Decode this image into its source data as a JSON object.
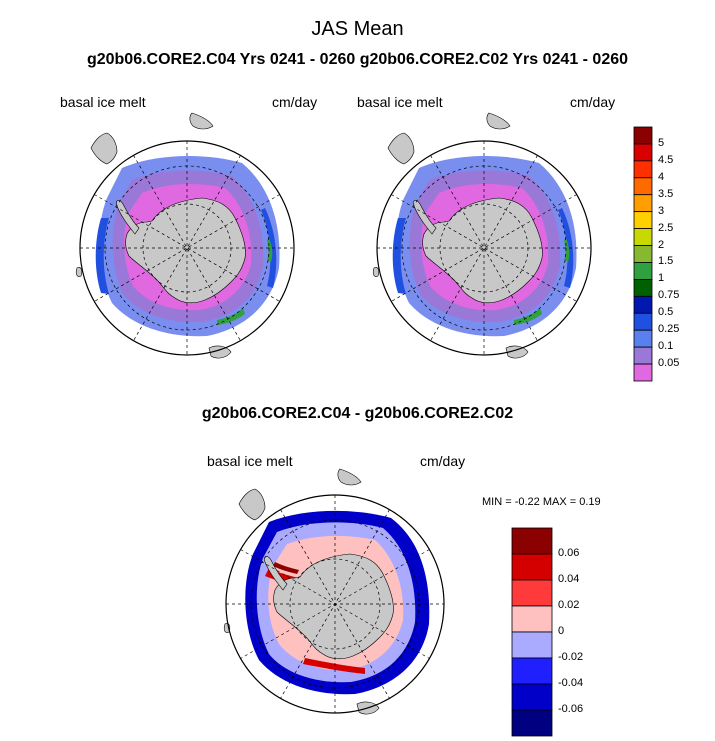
{
  "title": "JAS Mean",
  "subtitle": "g20b06.CORE2.C04  Yrs 0241 - 0260 g20b06.CORE2.C02  Yrs 0241 - 0260",
  "colors": {
    "land": "#c8c8c8",
    "ocean": "#ffffff",
    "grid_line": "#000000"
  },
  "chart_data": [
    {
      "type": "heatmap",
      "map_projection": "south-polar-stereographic",
      "left_label": "basal ice melt",
      "right_label": "cm/day",
      "colorbar": {
        "labels": [
          "5",
          "4.5",
          "4",
          "3.5",
          "3",
          "2.5",
          "2",
          "1.5",
          "1",
          "0.75",
          "0.5",
          "0.25",
          "0.1",
          "0.05"
        ],
        "colors": [
          "#8b0000",
          "#d80000",
          "#ff3000",
          "#ff6a00",
          "#ff9e00",
          "#ffd000",
          "#c8d800",
          "#88b830",
          "#30a040",
          "#006000",
          "#0018b0",
          "#2050e0",
          "#5a80f0",
          "#9a78d8",
          "#e068e0"
        ]
      }
    },
    {
      "type": "heatmap",
      "map_projection": "south-polar-stereographic",
      "left_label": "basal ice melt",
      "right_label": "cm/day"
    },
    {
      "type": "heatmap",
      "map_projection": "south-polar-stereographic",
      "title": "g20b06.CORE2.C04 - g20b06.CORE2.C02",
      "left_label": "basal ice melt",
      "right_label": "cm/day",
      "stats": "MIN =  -0.22 MAX =   0.19",
      "colorbar": {
        "labels": [
          "0.06",
          "0.04",
          "0.02",
          "0",
          "-0.02",
          "-0.04",
          "-0.06"
        ],
        "colors": [
          "#8b0000",
          "#d40000",
          "#ff3a3a",
          "#ffc0c0",
          "#aaaaff",
          "#2020ff",
          "#0000c8",
          "#000080"
        ]
      }
    }
  ]
}
